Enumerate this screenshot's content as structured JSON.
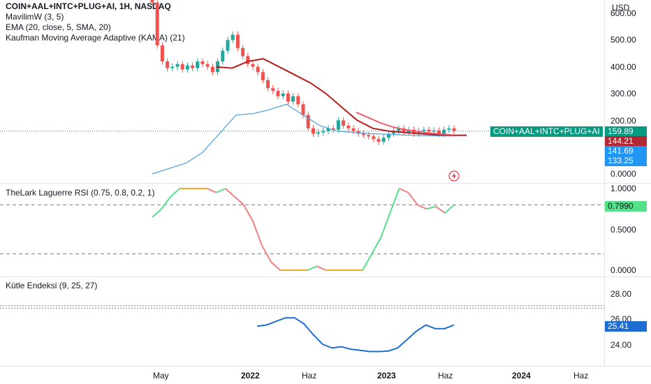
{
  "header": {
    "symbol": "COIN+AAL+INTC+PLUG+AI, 1H, NASDAQ",
    "currency": "USD",
    "indicators": [
      "MavilimW (3, 5)",
      "EMA (20, close, 5, SMA, 20)",
      "Kaufman Moving Average Adaptive (KAMA) (21)"
    ]
  },
  "colors": {
    "up": "#26a69a",
    "down": "#ef5350",
    "ema": "#4a9fe0",
    "kama": "#b71c1c",
    "mavilim": "#f05060",
    "last": "#089981",
    "kama_tag": "#b22833",
    "blue_tag": "#2196f3",
    "rsi_green": "#55e08a",
    "rsi_orange": "#f5a623",
    "rsi_red": "#f08080",
    "mass": "#1e6ed2"
  },
  "price_pane": {
    "y_ticks": [
      "600.00",
      "500.00",
      "400.00",
      "300.00",
      "200.00",
      "0.0000"
    ],
    "tags": {
      "symbol_label": "COIN+AAL+INTC+PLUG+AI",
      "last": "159.89",
      "kama": "144.21",
      "ema": "141.69",
      "ema2": "133.25"
    },
    "alert_icon": "lightning-icon"
  },
  "rsi_pane": {
    "title": "TheLark Laguerre RSI (0.75, 0.8, 0.2, 1)",
    "y_ticks": [
      "1.0000",
      "0.5000",
      "0.0000"
    ],
    "value": "0.7990"
  },
  "mass_pane": {
    "title": "Kütle Endeksi (9, 25, 27)",
    "y_ticks": [
      "28.00",
      "26.00",
      "24.00"
    ],
    "value": "25.41"
  },
  "x_axis": [
    {
      "label": "May",
      "bold": false
    },
    {
      "label": "2022",
      "bold": true
    },
    {
      "label": "Haz",
      "bold": false
    },
    {
      "label": "2023",
      "bold": true
    },
    {
      "label": "Haz",
      "bold": false
    },
    {
      "label": "2024",
      "bold": true
    },
    {
      "label": "Haz",
      "bold": false
    }
  ],
  "chart_data": [
    {
      "type": "candlestick",
      "title": "COIN+AAL+INTC+PLUG+AI, 1H, NASDAQ",
      "ylim": [
        0,
        600
      ],
      "last_close": 159.89,
      "close_approx": [
        640,
        480,
        420,
        395,
        400,
        410,
        390,
        405,
        395,
        420,
        410,
        400,
        380,
        420,
        460,
        500,
        520,
        470,
        440,
        410,
        400,
        380,
        350,
        320,
        310,
        290,
        300,
        270,
        290,
        260,
        220,
        170,
        150,
        155,
        160,
        170,
        165,
        200,
        180,
        170,
        160,
        150,
        145,
        140,
        130,
        120,
        135,
        150,
        160,
        170,
        155,
        165,
        150,
        160,
        165,
        158,
        162,
        150,
        165,
        170,
        160
      ],
      "series": [
        {
          "name": "EMA (20, close, 5, SMA, 20)",
          "values": [
            0,
            20,
            40,
            80,
            150,
            220,
            225,
            240,
            260,
            220,
            180,
            160,
            155,
            150,
            148,
            145,
            143,
            142,
            141.69
          ]
        },
        {
          "name": "Kaufman Moving Average Adaptive (KAMA) (21)",
          "values": [
            400,
            395,
            420,
            430,
            400,
            370,
            340,
            300,
            250,
            200,
            170,
            160,
            155,
            150,
            146,
            144,
            144.21
          ]
        },
        {
          "name": "MavilimW (3, 5)",
          "values": [
            230,
            210,
            190,
            175,
            165,
            158,
            152,
            148,
            145
          ]
        }
      ]
    },
    {
      "type": "line",
      "title": "TheLark Laguerre RSI (0.75, 0.8, 0.2, 1)",
      "ylim": [
        0,
        1
      ],
      "levels": [
        0.8,
        0.2
      ],
      "values": [
        0.65,
        0.75,
        0.9,
        1.0,
        1.0,
        1.0,
        1.0,
        0.95,
        1.0,
        0.9,
        0.8,
        0.6,
        0.3,
        0.1,
        0.0,
        0.0,
        0.0,
        0.0,
        0.05,
        0.0,
        0.0,
        0.0,
        0.0,
        0.0,
        0.2,
        0.4,
        0.7,
        1.0,
        0.95,
        0.8,
        0.75,
        0.78,
        0.7,
        0.799
      ]
    },
    {
      "type": "line",
      "title": "Kütle Endeksi (9, 25, 27)",
      "ylim": [
        23,
        28.5
      ],
      "levels": [
        27,
        26.8
      ],
      "values": [
        25.3,
        25.4,
        25.7,
        26.0,
        26.0,
        25.5,
        24.6,
        23.8,
        23.5,
        23.6,
        23.4,
        23.3,
        23.2,
        23.2,
        23.25,
        23.5,
        24.2,
        24.9,
        25.4,
        25.1,
        25.1,
        25.41
      ]
    }
  ]
}
